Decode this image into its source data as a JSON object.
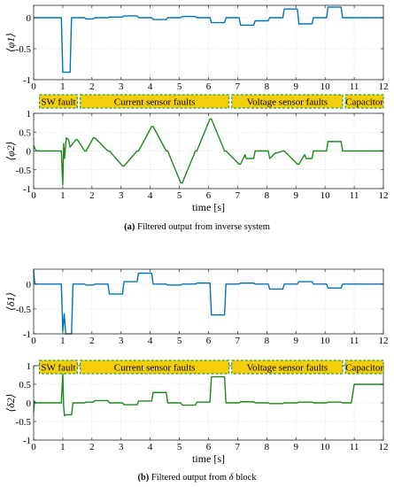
{
  "caption_a": {
    "letter": "(a)",
    "text": "Filtered output from inverse system"
  },
  "caption_b": {
    "letter": "(b)",
    "text": "Filtered output from",
    "symbol": "δ",
    "suffix": "block"
  },
  "fault_labels": [
    "SW fault",
    "Current sensor faults",
    "Voltage sensor faults",
    "Capacitor"
  ],
  "colors": {
    "blue": "#0072BD",
    "green": "#1A8A1A",
    "band": "#F5CE0A",
    "band_border": "#2E9E3A"
  },
  "chart_data": [
    {
      "type": "line",
      "title": "",
      "ylabel": "⟨φ1⟩",
      "xlabel": "",
      "xlim": [
        0,
        12
      ],
      "ylim": [
        -1,
        0.2
      ],
      "xticks": [
        0,
        1,
        2,
        3,
        4,
        5,
        6,
        7,
        8,
        9,
        10,
        11,
        12
      ],
      "yticks": [
        0,
        -0.5,
        -1
      ],
      "yticklabels": [
        "0",
        "-0.5",
        "-1"
      ],
      "grid": true,
      "series": [
        {
          "color": "#0072BD",
          "x": [
            0,
            0.95,
            1.0,
            1.25,
            1.3,
            1.75,
            1.8,
            2.05,
            2.1,
            2.55,
            2.6,
            3.05,
            3.1,
            3.55,
            3.6,
            4.05,
            4.1,
            4.55,
            4.6,
            5.05,
            5.1,
            5.55,
            5.6,
            6.05,
            6.1,
            6.55,
            6.6,
            7.05,
            7.1,
            7.55,
            7.6,
            8.05,
            8.1,
            8.55,
            8.6,
            9.05,
            9.1,
            9.55,
            9.6,
            10.05,
            10.1,
            10.55,
            10.6,
            12
          ],
          "y": [
            0,
            0,
            -0.88,
            -0.88,
            0,
            0,
            -0.02,
            -0.02,
            0,
            0,
            0.01,
            0.01,
            0.03,
            0.03,
            0,
            0,
            -0.03,
            -0.03,
            0,
            0,
            0.02,
            0.02,
            0,
            0,
            -0.08,
            -0.08,
            0,
            0,
            -0.12,
            -0.12,
            -0.05,
            -0.05,
            0,
            0,
            0.14,
            0.14,
            -0.1,
            -0.1,
            0,
            0,
            0.17,
            0.17,
            0,
            0
          ]
        }
      ]
    },
    {
      "type": "line",
      "title": "",
      "ylabel": "⟨φ2⟩",
      "xlabel": "time [s]",
      "xlim": [
        0,
        12
      ],
      "ylim": [
        -1,
        1
      ],
      "xticks": [
        0,
        1,
        2,
        3,
        4,
        5,
        6,
        7,
        8,
        9,
        10,
        11,
        12
      ],
      "yticks": [
        1,
        0.5,
        0,
        -0.5,
        -1
      ],
      "yticklabels": [
        "1",
        "0.5",
        "0",
        "-0.5",
        "-1"
      ],
      "grid": true,
      "series": [
        {
          "color": "#1A8A1A",
          "x": [
            0,
            0.05,
            0.1,
            0.95,
            1.0,
            1.03,
            1.06,
            1.12,
            1.2,
            1.25,
            1.45,
            1.5,
            1.75,
            1.8,
            2.05,
            2.1,
            2.55,
            2.6,
            3.05,
            3.1,
            3.55,
            3.6,
            4.05,
            4.1,
            4.55,
            4.6,
            5.05,
            5.1,
            5.55,
            5.6,
            6.05,
            6.1,
            6.55,
            6.6,
            7.05,
            7.1,
            7.25,
            7.3,
            7.55,
            7.6,
            8.05,
            8.1,
            8.3,
            8.35,
            8.55,
            8.6,
            9.05,
            9.1,
            9.3,
            9.35,
            9.55,
            9.6,
            10.05,
            10.1,
            10.55,
            10.6,
            12
          ],
          "y": [
            0.15,
            0.05,
            0,
            0,
            -0.9,
            0.2,
            -0.2,
            0.35,
            0.3,
            0.1,
            0.3,
            0.3,
            0,
            0,
            0.35,
            0.35,
            0,
            0,
            -0.4,
            -0.4,
            0,
            0,
            0.65,
            0.65,
            0,
            0,
            -0.85,
            -0.85,
            0,
            0,
            0.85,
            0.85,
            0,
            0,
            -0.35,
            -0.35,
            -0.1,
            -0.2,
            -0.2,
            0,
            0,
            -0.2,
            -0.05,
            -0.05,
            0,
            0,
            -0.35,
            -0.35,
            -0.1,
            -0.2,
            -0.2,
            0,
            0,
            0.25,
            0.25,
            0,
            0
          ]
        }
      ]
    },
    {
      "type": "line",
      "title": "",
      "ylabel": "⟨δ1⟩",
      "xlabel": "",
      "xlim": [
        0,
        12
      ],
      "ylim": [
        -1,
        0.3
      ],
      "xticks": [
        0,
        1,
        2,
        3,
        4,
        5,
        6,
        7,
        8,
        9,
        10,
        11,
        12
      ],
      "yticks": [
        0,
        -0.5,
        -1
      ],
      "yticklabels": [
        "0",
        "-0.5",
        "-1"
      ],
      "grid": true,
      "series": [
        {
          "color": "#0072BD",
          "x": [
            0,
            0.03,
            0.06,
            0.95,
            1.0,
            1.05,
            1.1,
            1.3,
            1.35,
            1.75,
            1.8,
            2.05,
            2.1,
            2.55,
            2.6,
            3.05,
            3.1,
            3.55,
            3.6,
            4.05,
            4.1,
            4.55,
            4.6,
            5.05,
            5.1,
            5.55,
            5.6,
            6.05,
            6.1,
            6.55,
            6.6,
            7.05,
            7.1,
            7.55,
            7.6,
            8.05,
            8.1,
            8.55,
            8.6,
            9.05,
            9.1,
            9.55,
            9.6,
            10.05,
            10.1,
            10.55,
            10.6,
            12
          ],
          "y": [
            0.28,
            0.05,
            0,
            0,
            -0.95,
            -0.6,
            -1.0,
            -1.0,
            0,
            0,
            -0.02,
            -0.02,
            0,
            0,
            -0.2,
            -0.2,
            0.05,
            0.05,
            0.22,
            0.22,
            0,
            0,
            -0.02,
            -0.02,
            0,
            0,
            0.02,
            0.02,
            -0.62,
            -0.62,
            0,
            0,
            0.02,
            0.02,
            0,
            0,
            -0.1,
            -0.1,
            0,
            0,
            0.05,
            0.05,
            0,
            0,
            -0.08,
            -0.08,
            0,
            0
          ]
        }
      ]
    },
    {
      "type": "line",
      "title": "",
      "ylabel": "⟨δ2⟩",
      "xlabel": "time [s]",
      "xlim": [
        0,
        12
      ],
      "ylim": [
        -1,
        1
      ],
      "xticks": [
        0,
        1,
        2,
        3,
        4,
        5,
        6,
        7,
        8,
        9,
        10,
        11,
        12
      ],
      "yticks": [
        1,
        0.5,
        0,
        -0.5,
        -1
      ],
      "yticklabels": [
        "1",
        "0.5",
        "0",
        "-0.5",
        "-1"
      ],
      "grid": true,
      "series": [
        {
          "color": "#1A8A1A",
          "x": [
            0,
            0.03,
            0.06,
            0.95,
            1.0,
            1.03,
            1.06,
            1.1,
            1.3,
            1.35,
            1.75,
            1.8,
            2.05,
            2.1,
            2.55,
            2.6,
            3.05,
            3.1,
            3.55,
            3.6,
            4.05,
            4.1,
            4.55,
            4.6,
            5.05,
            5.1,
            5.55,
            5.6,
            6.05,
            6.1,
            6.55,
            6.6,
            7.05,
            7.1,
            7.55,
            7.6,
            8.05,
            8.1,
            8.55,
            8.6,
            9.05,
            9.1,
            9.55,
            9.6,
            10.05,
            10.1,
            10.55,
            10.6,
            10.9,
            11.0,
            12
          ],
          "y": [
            -0.25,
            0.05,
            0,
            0,
            0.8,
            -0.1,
            -0.35,
            -0.32,
            -0.32,
            0,
            0,
            0.02,
            0.02,
            0.06,
            0.06,
            0,
            0,
            -0.05,
            -0.05,
            0.05,
            0.05,
            0.28,
            0.28,
            0,
            0,
            -0.06,
            -0.06,
            0.02,
            0.02,
            0.7,
            0.7,
            0,
            0,
            0.03,
            0.03,
            0,
            0,
            -0.02,
            -0.02,
            0,
            0,
            0.02,
            0.02,
            0,
            0,
            0.02,
            0.02,
            0,
            0,
            0.5,
            0.5
          ]
        }
      ]
    }
  ]
}
